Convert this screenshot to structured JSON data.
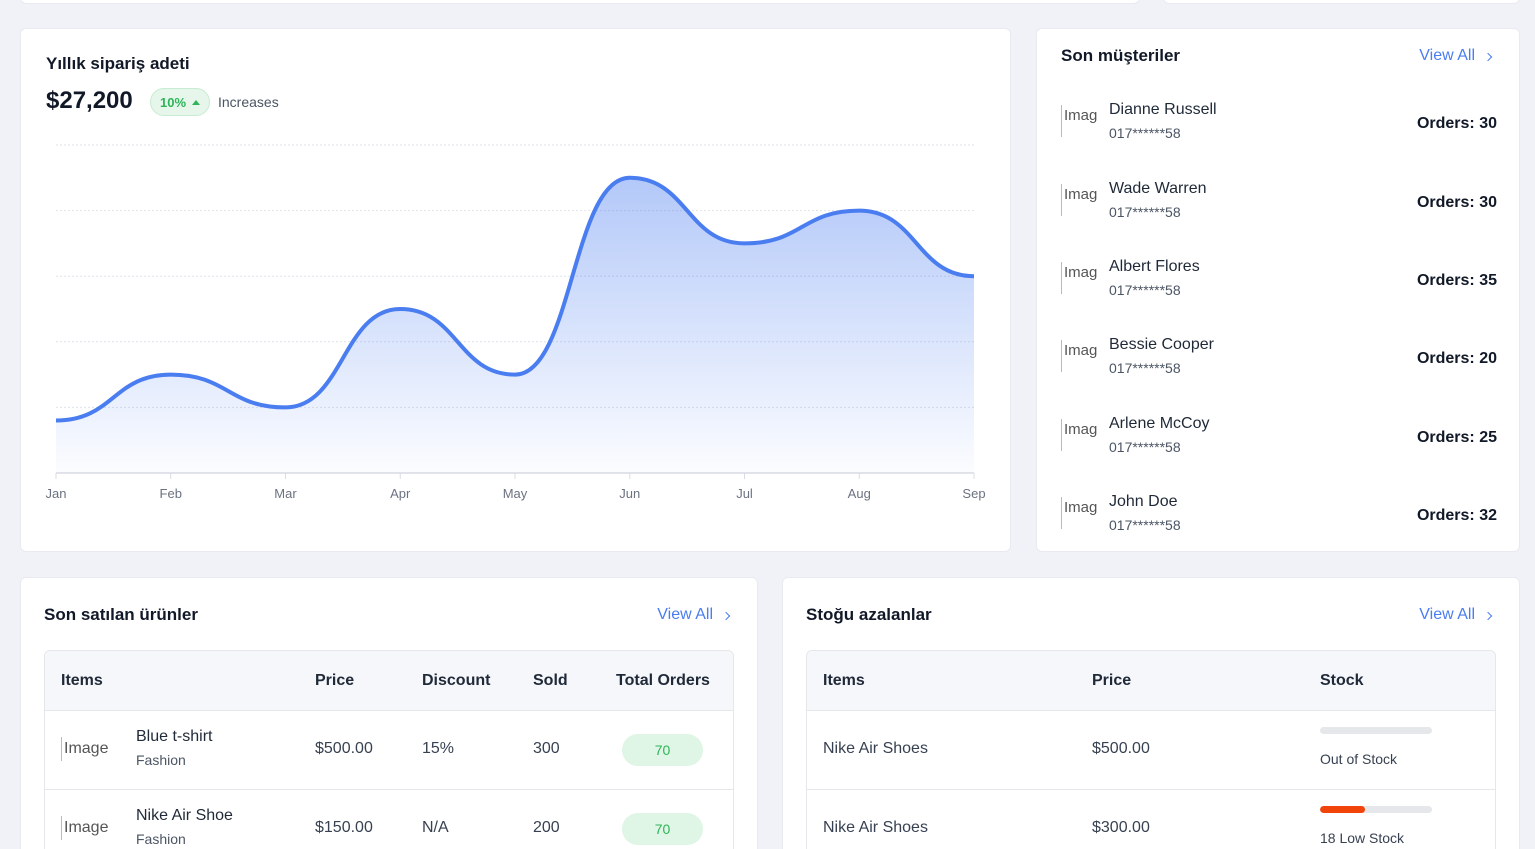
{
  "orders_chart": {
    "title": "Yıllık sipariş adeti",
    "value": "$27,200",
    "badge": "10%",
    "note": "Increases",
    "accent": "#4a7df0"
  },
  "chart_data": {
    "type": "area",
    "categories": [
      "Jan",
      "Feb",
      "Mar",
      "Apr",
      "May",
      "Jun",
      "Jul",
      "Aug",
      "Sep"
    ],
    "series": [
      {
        "values": [
          8,
          15,
          10,
          25,
          15,
          45,
          35,
          40,
          30
        ]
      }
    ],
    "ylim": [
      0,
      50
    ],
    "grid": true,
    "xlabel": "",
    "ylabel": ""
  },
  "customers": {
    "title": "Son müşteriler",
    "view_all": "View All",
    "img_alt": "Image",
    "items": [
      {
        "name": "Dianne Russell",
        "phone": "017******58",
        "orders": "Orders: 30"
      },
      {
        "name": "Wade Warren",
        "phone": "017******58",
        "orders": "Orders: 30"
      },
      {
        "name": "Albert Flores",
        "phone": "017******58",
        "orders": "Orders: 35"
      },
      {
        "name": "Bessie Cooper",
        "phone": "017******58",
        "orders": "Orders: 20"
      },
      {
        "name": "Arlene McCoy",
        "phone": "017******58",
        "orders": "Orders: 25"
      },
      {
        "name": "John Doe",
        "phone": "017******58",
        "orders": "Orders: 32"
      }
    ]
  },
  "products": {
    "title": "Son satılan ürünler",
    "view_all": "View All",
    "headers": [
      "Items",
      "Price",
      "Discount",
      "Sold",
      "Total Orders"
    ],
    "img_alt": "Image",
    "rows": [
      {
        "name": "Blue t-shirt",
        "category": "Fashion",
        "price": "$500.00",
        "discount": "15%",
        "sold": "300",
        "total": "70"
      },
      {
        "name": "Nike Air Shoe",
        "category": "Fashion",
        "price": "$150.00",
        "discount": "N/A",
        "sold": "200",
        "total": "70"
      }
    ]
  },
  "low_stock": {
    "title": "Stoğu azalanlar",
    "view_all": "View All",
    "headers": [
      "Items",
      "Price",
      "Stock"
    ],
    "rows": [
      {
        "item": "Nike Air Shoes",
        "price": "$500.00",
        "stock_label": "Out of Stock",
        "stock_level": 0
      },
      {
        "item": "Nike Air Shoes",
        "price": "$300.00",
        "stock_label": "18 Low Stock",
        "stock_level": 0.4
      }
    ]
  }
}
